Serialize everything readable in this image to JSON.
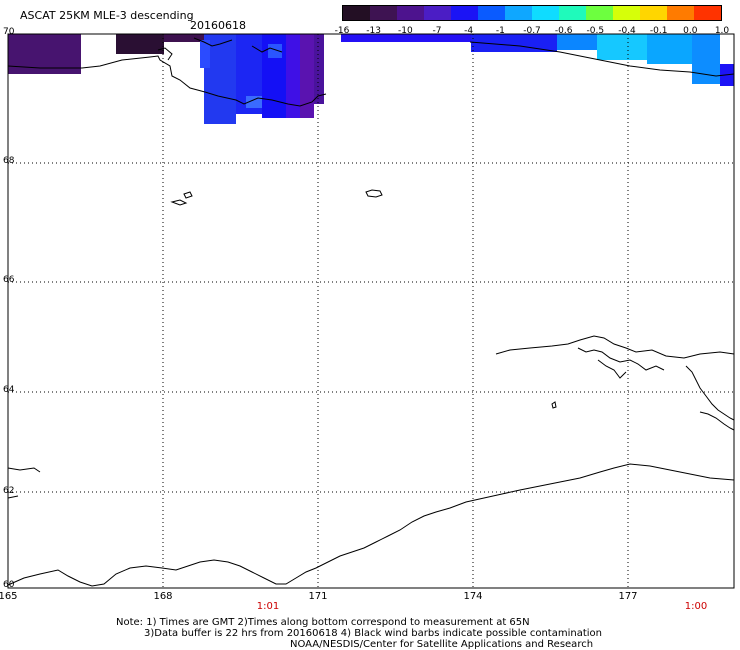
{
  "header": {
    "title": "ASCAT 25KM MLE-3 descending",
    "date": "20160618"
  },
  "colorbar": {
    "ticks": [
      "-16",
      "-13",
      "-10",
      "-7",
      "-4",
      "-1",
      "-0.7",
      "-0.6",
      "-0.5",
      "-0.4",
      "-0.1",
      "0.0",
      "1.0"
    ],
    "colors": [
      "#230f24",
      "#3e1352",
      "#4d138e",
      "#4b1dc5",
      "#1b14f5",
      "#0a5bff",
      "#0fa7ff",
      "#0fdcff",
      "#1ffabb",
      "#6dff3f",
      "#d6ff09",
      "#ffd600",
      "#ff7b00",
      "#ff3300"
    ]
  },
  "map": {
    "lat_labels": [
      "70",
      "68",
      "66",
      "64",
      "62",
      "60"
    ],
    "lon_labels": [
      "165",
      "168",
      "171",
      "174",
      "177"
    ],
    "time_labels": [
      "1:01",
      "1:00"
    ],
    "lat_range": [
      60,
      70
    ],
    "lon_range": [
      165,
      179
    ]
  },
  "notes": {
    "line1": "Note: 1) Times are GMT 2)Times along bottom correspond to measurement at 65N",
    "line2": "3)Data buffer is 22 hrs from 20160618 4) Black wind barbs indicate possible contamination",
    "line3": "NOAA/NESDIS/Center for Satellite Applications and Research"
  }
}
